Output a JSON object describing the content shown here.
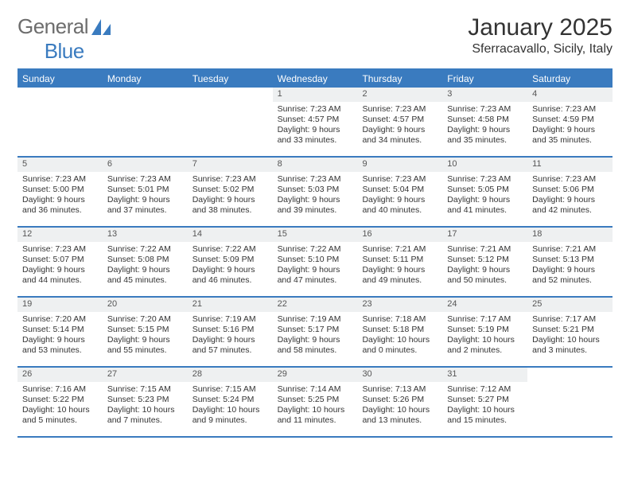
{
  "brand": {
    "part1": "General",
    "part2": "Blue"
  },
  "title": "January 2025",
  "location": "Sferracavallo, Sicily, Italy",
  "colors": {
    "accent": "#3a7bbf",
    "header_bg": "#3a7bbf",
    "header_text": "#ffffff",
    "daynum_bg": "#eef0f1",
    "text": "#333333",
    "logo_gray": "#6d6d6d"
  },
  "days_of_week": [
    "Sunday",
    "Monday",
    "Tuesday",
    "Wednesday",
    "Thursday",
    "Friday",
    "Saturday"
  ],
  "weeks": [
    [
      {
        "n": "",
        "lines": [
          "",
          "",
          "",
          ""
        ]
      },
      {
        "n": "",
        "lines": [
          "",
          "",
          "",
          ""
        ]
      },
      {
        "n": "",
        "lines": [
          "",
          "",
          "",
          ""
        ]
      },
      {
        "n": "1",
        "lines": [
          "Sunrise: 7:23 AM",
          "Sunset: 4:57 PM",
          "Daylight: 9 hours",
          "and 33 minutes."
        ]
      },
      {
        "n": "2",
        "lines": [
          "Sunrise: 7:23 AM",
          "Sunset: 4:57 PM",
          "Daylight: 9 hours",
          "and 34 minutes."
        ]
      },
      {
        "n": "3",
        "lines": [
          "Sunrise: 7:23 AM",
          "Sunset: 4:58 PM",
          "Daylight: 9 hours",
          "and 35 minutes."
        ]
      },
      {
        "n": "4",
        "lines": [
          "Sunrise: 7:23 AM",
          "Sunset: 4:59 PM",
          "Daylight: 9 hours",
          "and 35 minutes."
        ]
      }
    ],
    [
      {
        "n": "5",
        "lines": [
          "Sunrise: 7:23 AM",
          "Sunset: 5:00 PM",
          "Daylight: 9 hours",
          "and 36 minutes."
        ]
      },
      {
        "n": "6",
        "lines": [
          "Sunrise: 7:23 AM",
          "Sunset: 5:01 PM",
          "Daylight: 9 hours",
          "and 37 minutes."
        ]
      },
      {
        "n": "7",
        "lines": [
          "Sunrise: 7:23 AM",
          "Sunset: 5:02 PM",
          "Daylight: 9 hours",
          "and 38 minutes."
        ]
      },
      {
        "n": "8",
        "lines": [
          "Sunrise: 7:23 AM",
          "Sunset: 5:03 PM",
          "Daylight: 9 hours",
          "and 39 minutes."
        ]
      },
      {
        "n": "9",
        "lines": [
          "Sunrise: 7:23 AM",
          "Sunset: 5:04 PM",
          "Daylight: 9 hours",
          "and 40 minutes."
        ]
      },
      {
        "n": "10",
        "lines": [
          "Sunrise: 7:23 AM",
          "Sunset: 5:05 PM",
          "Daylight: 9 hours",
          "and 41 minutes."
        ]
      },
      {
        "n": "11",
        "lines": [
          "Sunrise: 7:23 AM",
          "Sunset: 5:06 PM",
          "Daylight: 9 hours",
          "and 42 minutes."
        ]
      }
    ],
    [
      {
        "n": "12",
        "lines": [
          "Sunrise: 7:23 AM",
          "Sunset: 5:07 PM",
          "Daylight: 9 hours",
          "and 44 minutes."
        ]
      },
      {
        "n": "13",
        "lines": [
          "Sunrise: 7:22 AM",
          "Sunset: 5:08 PM",
          "Daylight: 9 hours",
          "and 45 minutes."
        ]
      },
      {
        "n": "14",
        "lines": [
          "Sunrise: 7:22 AM",
          "Sunset: 5:09 PM",
          "Daylight: 9 hours",
          "and 46 minutes."
        ]
      },
      {
        "n": "15",
        "lines": [
          "Sunrise: 7:22 AM",
          "Sunset: 5:10 PM",
          "Daylight: 9 hours",
          "and 47 minutes."
        ]
      },
      {
        "n": "16",
        "lines": [
          "Sunrise: 7:21 AM",
          "Sunset: 5:11 PM",
          "Daylight: 9 hours",
          "and 49 minutes."
        ]
      },
      {
        "n": "17",
        "lines": [
          "Sunrise: 7:21 AM",
          "Sunset: 5:12 PM",
          "Daylight: 9 hours",
          "and 50 minutes."
        ]
      },
      {
        "n": "18",
        "lines": [
          "Sunrise: 7:21 AM",
          "Sunset: 5:13 PM",
          "Daylight: 9 hours",
          "and 52 minutes."
        ]
      }
    ],
    [
      {
        "n": "19",
        "lines": [
          "Sunrise: 7:20 AM",
          "Sunset: 5:14 PM",
          "Daylight: 9 hours",
          "and 53 minutes."
        ]
      },
      {
        "n": "20",
        "lines": [
          "Sunrise: 7:20 AM",
          "Sunset: 5:15 PM",
          "Daylight: 9 hours",
          "and 55 minutes."
        ]
      },
      {
        "n": "21",
        "lines": [
          "Sunrise: 7:19 AM",
          "Sunset: 5:16 PM",
          "Daylight: 9 hours",
          "and 57 minutes."
        ]
      },
      {
        "n": "22",
        "lines": [
          "Sunrise: 7:19 AM",
          "Sunset: 5:17 PM",
          "Daylight: 9 hours",
          "and 58 minutes."
        ]
      },
      {
        "n": "23",
        "lines": [
          "Sunrise: 7:18 AM",
          "Sunset: 5:18 PM",
          "Daylight: 10 hours",
          "and 0 minutes."
        ]
      },
      {
        "n": "24",
        "lines": [
          "Sunrise: 7:17 AM",
          "Sunset: 5:19 PM",
          "Daylight: 10 hours",
          "and 2 minutes."
        ]
      },
      {
        "n": "25",
        "lines": [
          "Sunrise: 7:17 AM",
          "Sunset: 5:21 PM",
          "Daylight: 10 hours",
          "and 3 minutes."
        ]
      }
    ],
    [
      {
        "n": "26",
        "lines": [
          "Sunrise: 7:16 AM",
          "Sunset: 5:22 PM",
          "Daylight: 10 hours",
          "and 5 minutes."
        ]
      },
      {
        "n": "27",
        "lines": [
          "Sunrise: 7:15 AM",
          "Sunset: 5:23 PM",
          "Daylight: 10 hours",
          "and 7 minutes."
        ]
      },
      {
        "n": "28",
        "lines": [
          "Sunrise: 7:15 AM",
          "Sunset: 5:24 PM",
          "Daylight: 10 hours",
          "and 9 minutes."
        ]
      },
      {
        "n": "29",
        "lines": [
          "Sunrise: 7:14 AM",
          "Sunset: 5:25 PM",
          "Daylight: 10 hours",
          "and 11 minutes."
        ]
      },
      {
        "n": "30",
        "lines": [
          "Sunrise: 7:13 AM",
          "Sunset: 5:26 PM",
          "Daylight: 10 hours",
          "and 13 minutes."
        ]
      },
      {
        "n": "31",
        "lines": [
          "Sunrise: 7:12 AM",
          "Sunset: 5:27 PM",
          "Daylight: 10 hours",
          "and 15 minutes."
        ]
      },
      {
        "n": "",
        "lines": [
          "",
          "",
          "",
          ""
        ]
      }
    ]
  ]
}
